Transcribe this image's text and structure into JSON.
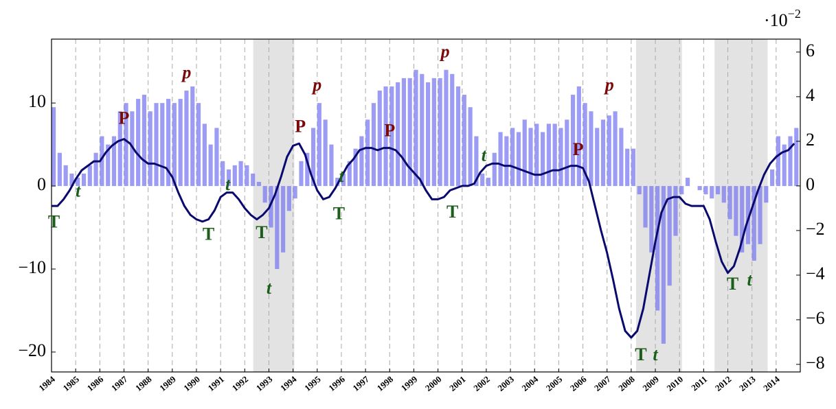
{
  "chart_data": {
    "type": "combo",
    "x": [
      1984,
      1984.25,
      1984.5,
      1984.75,
      1985,
      1985.25,
      1985.5,
      1985.75,
      1986,
      1986.25,
      1986.5,
      1986.75,
      1987,
      1987.25,
      1987.5,
      1987.75,
      1988,
      1988.25,
      1988.5,
      1988.75,
      1989,
      1989.25,
      1989.5,
      1989.75,
      1990,
      1990.25,
      1990.5,
      1990.75,
      1991,
      1991.25,
      1991.5,
      1991.75,
      1992,
      1992.25,
      1992.5,
      1992.75,
      1993,
      1993.25,
      1993.5,
      1993.75,
      1994,
      1994.25,
      1994.5,
      1994.75,
      1995,
      1995.25,
      1995.5,
      1995.75,
      1996,
      1996.25,
      1996.5,
      1996.75,
      1997,
      1997.25,
      1997.5,
      1997.75,
      1998,
      1998.25,
      1998.5,
      1998.75,
      1999,
      1999.25,
      1999.5,
      1999.75,
      2000,
      2000.25,
      2000.5,
      2000.75,
      2001,
      2001.25,
      2001.5,
      2001.75,
      2002,
      2002.25,
      2002.5,
      2002.75,
      2003,
      2003.25,
      2003.5,
      2003.75,
      2004,
      2004.25,
      2004.5,
      2004.75,
      2005,
      2005.25,
      2005.5,
      2005.75,
      2006,
      2006.25,
      2006.5,
      2006.75,
      2007,
      2007.25,
      2007.5,
      2007.75,
      2008,
      2008.25,
      2008.5,
      2008.75,
      2009,
      2009.25,
      2009.5,
      2009.75,
      2010,
      2010.25,
      2010.5,
      2010.75,
      2011,
      2011.25,
      2011.5,
      2011.75,
      2012,
      2012.25,
      2012.5,
      2012.75,
      2013,
      2013.25,
      2013.5,
      2013.75,
      2014,
      2014.25,
      2014.5,
      2014.75
    ],
    "series": [
      {
        "type": "bar",
        "axis": "y",
        "color": "#7b7bf0",
        "values": [
          9.5,
          4,
          2.5,
          1.5,
          1,
          1.5,
          2.5,
          4,
          6,
          5,
          6,
          9,
          10,
          9,
          10.5,
          11,
          9,
          10,
          10,
          10.5,
          10,
          10.5,
          11.5,
          12,
          10,
          7.5,
          5,
          7,
          3,
          2,
          2.5,
          3,
          2.5,
          1.5,
          0.5,
          -2,
          -5,
          -10,
          -8,
          -3,
          -1.5,
          3,
          4,
          7,
          10,
          8,
          5,
          1,
          1.5,
          3,
          4.5,
          6,
          8,
          10,
          11.5,
          12,
          12,
          12.5,
          13,
          13,
          14,
          13.5,
          12.5,
          13,
          13,
          14,
          13.5,
          12,
          11,
          9.5,
          6,
          1.5,
          1,
          4,
          6.5,
          6,
          7,
          6.5,
          8,
          7,
          7.5,
          6.5,
          7.5,
          7.5,
          7,
          8,
          11,
          12,
          10,
          9,
          7,
          8,
          8.5,
          9,
          7,
          4.5,
          4.5,
          -1,
          -5,
          -8,
          -15,
          -19,
          -12,
          -6,
          -1,
          1,
          0,
          -0.5,
          -1,
          -1.5,
          -1,
          -2,
          -4,
          -6,
          -8,
          -7,
          -9,
          -7,
          -2,
          2,
          6,
          5,
          6,
          7
        ]
      },
      {
        "type": "line",
        "axis": "y2",
        "color": "#0a0a6e",
        "values": [
          -0.9,
          -0.9,
          -0.6,
          -0.2,
          0.3,
          0.7,
          0.9,
          1.1,
          1.1,
          1.5,
          1.8,
          2.0,
          2.1,
          1.9,
          1.5,
          1.2,
          1.0,
          1.0,
          0.9,
          0.8,
          0.4,
          -0.3,
          -0.9,
          -1.3,
          -1.5,
          -1.6,
          -1.5,
          -1.1,
          -0.5,
          -0.3,
          -0.3,
          -0.6,
          -1.0,
          -1.3,
          -1.5,
          -1.3,
          -1.0,
          -0.4,
          0.4,
          1.3,
          1.8,
          1.9,
          1.4,
          0.5,
          -0.2,
          -0.6,
          -0.5,
          -0.1,
          0.4,
          0.9,
          1.2,
          1.6,
          1.7,
          1.7,
          1.6,
          1.7,
          1.7,
          1.6,
          1.3,
          0.9,
          0.6,
          0.3,
          -0.2,
          -0.6,
          -0.6,
          -0.5,
          -0.2,
          -0.1,
          0,
          0,
          0.1,
          0.6,
          0.9,
          1.0,
          1.0,
          0.9,
          0.9,
          0.8,
          0.7,
          0.6,
          0.5,
          0.5,
          0.6,
          0.7,
          0.7,
          0.8,
          0.9,
          0.9,
          0.8,
          0.2,
          -0.9,
          -2.0,
          -3.0,
          -4.2,
          -5.5,
          -6.5,
          -6.8,
          -6.5,
          -5.5,
          -4.0,
          -2.5,
          -1.2,
          -0.6,
          -0.5,
          -0.5,
          -0.8,
          -0.9,
          -0.9,
          -0.9,
          -1.5,
          -2.5,
          -3.4,
          -3.9,
          -3.6,
          -2.8,
          -1.8,
          -1.0,
          -0.2,
          0.5,
          1.0,
          1.3,
          1.5,
          1.6,
          1.9
        ]
      }
    ],
    "xlim": [
      1984,
      2015
    ],
    "xticks": [
      1984,
      1985,
      1986,
      1987,
      1988,
      1989,
      1990,
      1991,
      1992,
      1993,
      1994,
      1995,
      1996,
      1997,
      1998,
      1999,
      2000,
      2001,
      2002,
      2003,
      2004,
      2005,
      2006,
      2007,
      2008,
      2009,
      2010,
      2011,
      2012,
      2013,
      2014
    ],
    "ylim": [
      -22.4,
      17.7
    ],
    "yticks": [
      {
        "value": -20,
        "label": "−20"
      },
      {
        "value": -10,
        "label": "−10"
      },
      0,
      10
    ],
    "y2lim": [
      -8.34,
      6.58
    ],
    "y2ticks": [
      {
        "value": -8,
        "label": "−8"
      },
      {
        "value": -6,
        "label": "−6"
      },
      {
        "value": -4,
        "label": "−4"
      },
      {
        "value": -2,
        "label": "−2"
      },
      0,
      2,
      4,
      6
    ],
    "y2_multiplier": {
      "base": "·10",
      "exponent": "−2"
    },
    "grid": true,
    "shaded": [
      [
        1992.35,
        1994.05
      ],
      [
        2008.2,
        2010.1
      ],
      [
        2011.45,
        2013.65
      ]
    ],
    "annotations": [
      {
        "text": "T",
        "x": 1984.1,
        "y": -4.5,
        "color": "#1a5e1a"
      },
      {
        "text": "t",
        "x": 1985.1,
        "y": -0.8,
        "color": "#1a5e1a"
      },
      {
        "text": "P",
        "x": 1987.0,
        "y": 8,
        "color": "#7a0a0a"
      },
      {
        "text": "p",
        "x": 1989.6,
        "y": 13.5,
        "color": "#7a0a0a"
      },
      {
        "text": "T",
        "x": 1990.5,
        "y": -6,
        "color": "#1a5e1a"
      },
      {
        "text": "t",
        "x": 1991.3,
        "y": 0,
        "color": "#1a5e1a"
      },
      {
        "text": "T",
        "x": 1992.7,
        "y": -5.8,
        "color": "#1a5e1a"
      },
      {
        "text": "t",
        "x": 1993.0,
        "y": -12.5,
        "color": "#1a5e1a"
      },
      {
        "text": "P",
        "x": 1994.3,
        "y": 7,
        "color": "#7a0a0a"
      },
      {
        "text": "p",
        "x": 1995.0,
        "y": 12,
        "color": "#7a0a0a"
      },
      {
        "text": "t",
        "x": 1996.0,
        "y": 1,
        "color": "#1a5e1a"
      },
      {
        "text": "T",
        "x": 1995.9,
        "y": -3.5,
        "color": "#1a5e1a"
      },
      {
        "text": "P",
        "x": 1998.0,
        "y": 6.5,
        "color": "#7a0a0a"
      },
      {
        "text": "p",
        "x": 2000.3,
        "y": 16,
        "color": "#7a0a0a"
      },
      {
        "text": "T",
        "x": 2000.6,
        "y": -3.3,
        "color": "#1a5e1a"
      },
      {
        "text": "t",
        "x": 2001.9,
        "y": 3.5,
        "color": "#1a5e1a"
      },
      {
        "text": "P",
        "x": 2005.8,
        "y": 4.2,
        "color": "#7a0a0a"
      },
      {
        "text": "p",
        "x": 2007.1,
        "y": 12,
        "color": "#7a0a0a"
      },
      {
        "text": "T",
        "x": 2008.4,
        "y": -20.5,
        "color": "#1a5e1a"
      },
      {
        "text": "t",
        "x": 2009.0,
        "y": -20.5,
        "color": "#1a5e1a"
      },
      {
        "text": "T",
        "x": 2012.2,
        "y": -12,
        "color": "#1a5e1a"
      },
      {
        "text": "t",
        "x": 2012.9,
        "y": -11.5,
        "color": "#1a5e1a"
      }
    ]
  }
}
